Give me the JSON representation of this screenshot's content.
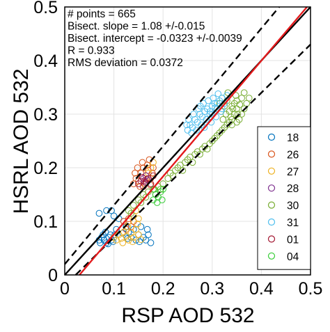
{
  "chart_data": {
    "type": "scatter",
    "xlabel": "RSP AOD 532",
    "ylabel": "HSRL AOD 532",
    "xlim": [
      0,
      0.5
    ],
    "ylim": [
      0,
      0.5
    ],
    "x_ticks": [
      "0",
      "0.1",
      "0.2",
      "0.3",
      "0.4",
      "0.5"
    ],
    "y_ticks": [
      "0",
      "0.1",
      "0.2",
      "0.3",
      "0.4",
      "0.5"
    ],
    "grid": true,
    "legend_position": "bottom-right",
    "stats": [
      "# points = 665",
      "Bisect. slope = 1.08 +/-0.015",
      "Bisect. intercept = -0.0323 +/-0.0039",
      "R = 0.933",
      "RMS deviation = 0.0372"
    ],
    "reference_lines": [
      {
        "kind": "one-to-one",
        "slope": 1,
        "intercept": 0,
        "color": "#000000",
        "style": "solid"
      },
      {
        "kind": "upper-bound",
        "slope": 1.1,
        "intercept": 0.02,
        "color": "#000000",
        "style": "dashed"
      },
      {
        "kind": "lower-bound",
        "slope": 0.9,
        "intercept": -0.02,
        "color": "#000000",
        "style": "dashed"
      },
      {
        "kind": "bisector-fit",
        "slope": 1.08,
        "intercept": -0.0323,
        "color": "#e31a1c",
        "style": "solid"
      }
    ],
    "series": [
      {
        "name": "18",
        "color": "#0072bd",
        "points": [
          [
            0.07,
            0.065
          ],
          [
            0.075,
            0.07
          ],
          [
            0.08,
            0.065
          ],
          [
            0.085,
            0.06
          ],
          [
            0.09,
            0.07
          ],
          [
            0.095,
            0.065
          ],
          [
            0.1,
            0.07
          ],
          [
            0.078,
            0.075
          ],
          [
            0.083,
            0.08
          ],
          [
            0.088,
            0.058
          ],
          [
            0.093,
            0.075
          ],
          [
            0.098,
            0.062
          ],
          [
            0.072,
            0.06
          ],
          [
            0.102,
            0.075
          ],
          [
            0.07,
            0.115
          ],
          [
            0.085,
            0.12
          ],
          [
            0.1,
            0.11
          ],
          [
            0.12,
            0.1
          ],
          [
            0.13,
            0.08
          ],
          [
            0.14,
            0.085
          ],
          [
            0.15,
            0.075
          ],
          [
            0.155,
            0.09
          ],
          [
            0.16,
            0.07
          ],
          [
            0.165,
            0.065
          ],
          [
            0.17,
            0.075
          ],
          [
            0.175,
            0.06
          ],
          [
            0.125,
            0.09
          ],
          [
            0.135,
            0.07
          ],
          [
            0.145,
            0.065
          ],
          [
            0.11,
            0.105
          ],
          [
            0.095,
            0.12
          ],
          [
            0.105,
            0.085
          ],
          [
            0.118,
            0.078
          ],
          [
            0.128,
            0.068
          ],
          [
            0.152,
            0.062
          ],
          [
            0.168,
            0.085
          ]
        ]
      },
      {
        "name": "26",
        "color": "#d95319",
        "points": [
          [
            0.14,
            0.17
          ],
          [
            0.145,
            0.18
          ],
          [
            0.15,
            0.175
          ],
          [
            0.155,
            0.19
          ],
          [
            0.16,
            0.2
          ],
          [
            0.165,
            0.185
          ],
          [
            0.17,
            0.195
          ],
          [
            0.175,
            0.18
          ],
          [
            0.158,
            0.21
          ],
          [
            0.162,
            0.17
          ],
          [
            0.168,
            0.205
          ],
          [
            0.172,
            0.215
          ],
          [
            0.148,
            0.2
          ],
          [
            0.153,
            0.165
          ],
          [
            0.178,
            0.19
          ],
          [
            0.18,
            0.2
          ],
          [
            0.143,
            0.19
          ],
          [
            0.166,
            0.178
          ],
          [
            0.174,
            0.168
          ],
          [
            0.12,
            0.1
          ],
          [
            0.125,
            0.085
          ],
          [
            0.13,
            0.105
          ],
          [
            0.135,
            0.09
          ],
          [
            0.14,
            0.1
          ]
        ]
      },
      {
        "name": "27",
        "color": "#edb120",
        "points": [
          [
            0.1,
            0.07
          ],
          [
            0.105,
            0.065
          ],
          [
            0.11,
            0.075
          ],
          [
            0.115,
            0.068
          ],
          [
            0.12,
            0.08
          ],
          [
            0.125,
            0.072
          ],
          [
            0.13,
            0.065
          ],
          [
            0.135,
            0.078
          ],
          [
            0.14,
            0.07
          ],
          [
            0.145,
            0.085
          ],
          [
            0.15,
            0.075
          ],
          [
            0.155,
            0.066
          ],
          [
            0.118,
            0.06
          ],
          [
            0.128,
            0.09
          ],
          [
            0.138,
            0.062
          ],
          [
            0.148,
            0.095
          ],
          [
            0.13,
            0.1
          ],
          [
            0.14,
            0.11
          ],
          [
            0.145,
            0.12
          ],
          [
            0.15,
            0.105
          ],
          [
            0.17,
            0.19
          ],
          [
            0.175,
            0.2
          ],
          [
            0.18,
            0.21
          ]
        ]
      },
      {
        "name": "28",
        "color": "#7e2f8e",
        "points": [
          [
            0.16,
            0.18
          ],
          [
            0.162,
            0.175
          ],
          [
            0.165,
            0.185
          ],
          [
            0.168,
            0.178
          ]
        ]
      },
      {
        "name": "30",
        "color": "#77ac30",
        "points": [
          [
            0.13,
            0.12
          ],
          [
            0.135,
            0.115
          ],
          [
            0.14,
            0.13
          ],
          [
            0.15,
            0.14
          ],
          [
            0.155,
            0.135
          ],
          [
            0.16,
            0.15
          ],
          [
            0.165,
            0.145
          ],
          [
            0.17,
            0.155
          ],
          [
            0.18,
            0.16
          ],
          [
            0.185,
            0.15
          ],
          [
            0.19,
            0.165
          ],
          [
            0.195,
            0.16
          ],
          [
            0.2,
            0.17
          ],
          [
            0.21,
            0.18
          ],
          [
            0.215,
            0.19
          ],
          [
            0.22,
            0.185
          ],
          [
            0.225,
            0.195
          ],
          [
            0.23,
            0.2
          ],
          [
            0.235,
            0.205
          ],
          [
            0.24,
            0.195
          ],
          [
            0.245,
            0.21
          ],
          [
            0.25,
            0.215
          ],
          [
            0.255,
            0.22
          ],
          [
            0.26,
            0.21
          ],
          [
            0.265,
            0.225
          ],
          [
            0.27,
            0.23
          ],
          [
            0.275,
            0.225
          ],
          [
            0.28,
            0.235
          ],
          [
            0.285,
            0.24
          ],
          [
            0.29,
            0.235
          ],
          [
            0.295,
            0.245
          ],
          [
            0.3,
            0.25
          ],
          [
            0.305,
            0.255
          ],
          [
            0.31,
            0.26
          ],
          [
            0.315,
            0.265
          ],
          [
            0.32,
            0.27
          ],
          [
            0.325,
            0.275
          ],
          [
            0.33,
            0.28
          ],
          [
            0.335,
            0.285
          ],
          [
            0.34,
            0.29
          ],
          [
            0.345,
            0.3
          ],
          [
            0.35,
            0.31
          ],
          [
            0.355,
            0.29
          ],
          [
            0.36,
            0.3
          ],
          [
            0.365,
            0.31
          ],
          [
            0.37,
            0.32
          ],
          [
            0.375,
            0.33
          ],
          [
            0.31,
            0.31
          ],
          [
            0.315,
            0.32
          ],
          [
            0.32,
            0.33
          ],
          [
            0.325,
            0.315
          ],
          [
            0.33,
            0.325
          ],
          [
            0.335,
            0.305
          ],
          [
            0.34,
            0.315
          ],
          [
            0.345,
            0.32
          ],
          [
            0.35,
            0.325
          ],
          [
            0.338,
            0.295
          ],
          [
            0.342,
            0.31
          ],
          [
            0.348,
            0.335
          ],
          [
            0.352,
            0.3
          ],
          [
            0.318,
            0.305
          ],
          [
            0.328,
            0.3
          ],
          [
            0.332,
            0.34
          ],
          [
            0.36,
            0.33
          ],
          [
            0.365,
            0.34
          ],
          [
            0.34,
            0.28
          ],
          [
            0.35,
            0.285
          ],
          [
            0.322,
            0.29
          ],
          [
            0.356,
            0.318
          ]
        ]
      },
      {
        "name": "31",
        "color": "#4dbeee",
        "points": [
          [
            0.25,
            0.27
          ],
          [
            0.255,
            0.28
          ],
          [
            0.26,
            0.275
          ],
          [
            0.265,
            0.29
          ],
          [
            0.27,
            0.285
          ],
          [
            0.275,
            0.3
          ],
          [
            0.28,
            0.295
          ],
          [
            0.285,
            0.305
          ],
          [
            0.29,
            0.31
          ],
          [
            0.295,
            0.3
          ],
          [
            0.3,
            0.315
          ],
          [
            0.305,
            0.32
          ],
          [
            0.31,
            0.31
          ],
          [
            0.315,
            0.325
          ],
          [
            0.32,
            0.33
          ],
          [
            0.325,
            0.32
          ],
          [
            0.33,
            0.335
          ],
          [
            0.258,
            0.265
          ],
          [
            0.262,
            0.3
          ],
          [
            0.268,
            0.27
          ],
          [
            0.272,
            0.31
          ],
          [
            0.278,
            0.28
          ],
          [
            0.282,
            0.32
          ],
          [
            0.288,
            0.29
          ],
          [
            0.292,
            0.325
          ],
          [
            0.298,
            0.285
          ],
          [
            0.302,
            0.33
          ],
          [
            0.308,
            0.295
          ],
          [
            0.312,
            0.338
          ],
          [
            0.318,
            0.305
          ],
          [
            0.252,
            0.29
          ],
          [
            0.248,
            0.28
          ],
          [
            0.3,
            0.3
          ],
          [
            0.31,
            0.32
          ],
          [
            0.32,
            0.31
          ],
          [
            0.276,
            0.315
          ],
          [
            0.284,
            0.275
          ],
          [
            0.296,
            0.305
          ],
          [
            0.306,
            0.312
          ]
        ]
      },
      {
        "name": "01",
        "color": "#a2142f",
        "points": [
          [
            0.15,
            0.17
          ],
          [
            0.155,
            0.175
          ],
          [
            0.16,
            0.165
          ],
          [
            0.17,
            0.18
          ],
          [
            0.175,
            0.17
          ],
          [
            0.18,
            0.185
          ],
          [
            0.165,
            0.172
          ],
          [
            0.158,
            0.182
          ]
        ]
      },
      {
        "name": "04",
        "color": "#33cc33",
        "points": [
          [
            0.18,
            0.14
          ],
          [
            0.185,
            0.15
          ],
          [
            0.19,
            0.145
          ],
          [
            0.195,
            0.155
          ],
          [
            0.2,
            0.16
          ],
          [
            0.182,
            0.16
          ],
          [
            0.188,
            0.135
          ],
          [
            0.198,
            0.14
          ]
        ]
      }
    ]
  }
}
